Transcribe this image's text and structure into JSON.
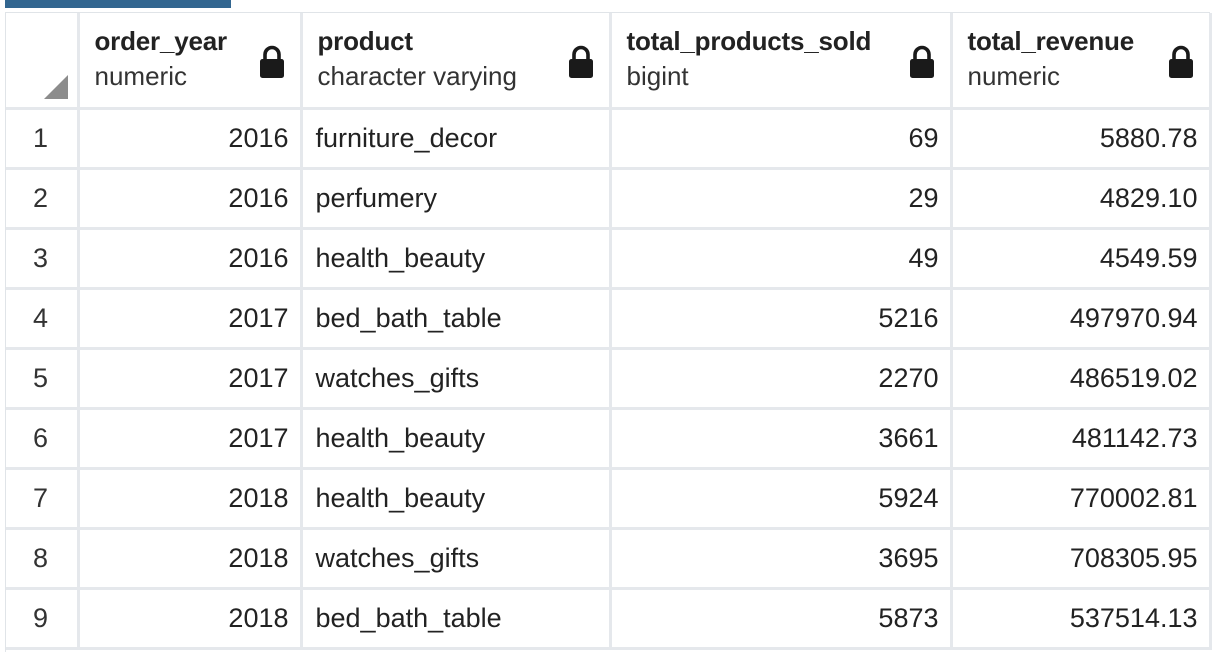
{
  "columns": [
    {
      "name": "order_year",
      "type": "numeric"
    },
    {
      "name": "product",
      "type": "character varying"
    },
    {
      "name": "total_products_sold",
      "type": "bigint"
    },
    {
      "name": "total_revenue",
      "type": "numeric"
    }
  ],
  "rows": [
    {
      "n": "1",
      "order_year": "2016",
      "product": "furniture_decor",
      "total_products_sold": "69",
      "total_revenue": "5880.78"
    },
    {
      "n": "2",
      "order_year": "2016",
      "product": "perfumery",
      "total_products_sold": "29",
      "total_revenue": "4829.10"
    },
    {
      "n": "3",
      "order_year": "2016",
      "product": "health_beauty",
      "total_products_sold": "49",
      "total_revenue": "4549.59"
    },
    {
      "n": "4",
      "order_year": "2017",
      "product": "bed_bath_table",
      "total_products_sold": "5216",
      "total_revenue": "497970.94"
    },
    {
      "n": "5",
      "order_year": "2017",
      "product": "watches_gifts",
      "total_products_sold": "2270",
      "total_revenue": "486519.02"
    },
    {
      "n": "6",
      "order_year": "2017",
      "product": "health_beauty",
      "total_products_sold": "3661",
      "total_revenue": "481142.73"
    },
    {
      "n": "7",
      "order_year": "2018",
      "product": "health_beauty",
      "total_products_sold": "5924",
      "total_revenue": "770002.81"
    },
    {
      "n": "8",
      "order_year": "2018",
      "product": "watches_gifts",
      "total_products_sold": "3695",
      "total_revenue": "708305.95"
    },
    {
      "n": "9",
      "order_year": "2018",
      "product": "bed_bath_table",
      "total_products_sold": "5873",
      "total_revenue": "537514.13"
    }
  ],
  "icons": {
    "lock": "lock-icon",
    "corner": "sort-corner-icon"
  },
  "colors": {
    "accent_tab": "#326690",
    "grid_line": "#e5e8ec",
    "text": "#222222"
  }
}
